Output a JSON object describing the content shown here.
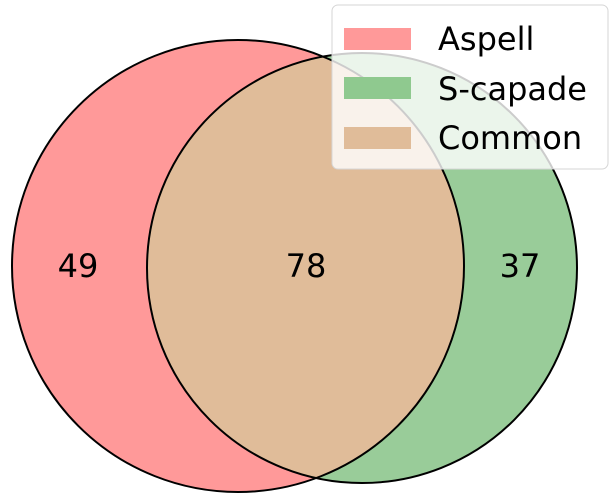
{
  "chart_data": {
    "type": "venn",
    "sets": [
      {
        "name": "Aspell",
        "only_count": "49",
        "color": "#ff9999"
      },
      {
        "name": "S-capade",
        "only_count": "37",
        "color": "#99cc99"
      }
    ],
    "intersection": {
      "name": "Common",
      "count": "78",
      "color": "#e0bc99"
    },
    "legend": {
      "placement": "top-right",
      "entries": [
        {
          "label": "Aspell",
          "color": "#ff9999"
        },
        {
          "label": "S-capade",
          "color": "#8fc98f"
        },
        {
          "label": "Common",
          "color": "#e0bc99"
        }
      ]
    }
  }
}
